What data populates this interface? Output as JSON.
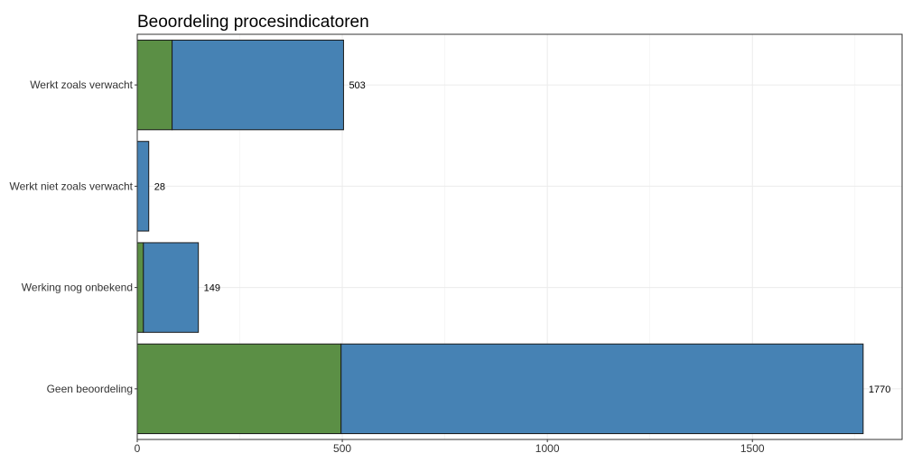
{
  "chart_data": {
    "type": "bar",
    "orientation": "horizontal",
    "stacked": true,
    "title": "Beoordeling procesindicatoren",
    "xlabel": "",
    "ylabel": "",
    "xlim": [
      0,
      1865
    ],
    "x_ticks": [
      0,
      500,
      1000,
      1500
    ],
    "x_tick_labels": [
      "0",
      "500",
      "1000",
      "1500"
    ],
    "categories": [
      "Werkt zoals verwacht",
      "Werkt niet zoals verwacht",
      "Werking nog onbekend",
      "Geen beoordeling"
    ],
    "series": [
      {
        "color": "#5b8f45",
        "values": [
          85,
          0,
          15,
          497
        ]
      },
      {
        "color": "#4682b4",
        "values": [
          418,
          28,
          134,
          1273
        ]
      }
    ],
    "totals": [
      503,
      28,
      149,
      1770
    ],
    "total_labels": [
      "503",
      "28",
      "149",
      "1770"
    ],
    "grid": true,
    "legend": "none"
  }
}
